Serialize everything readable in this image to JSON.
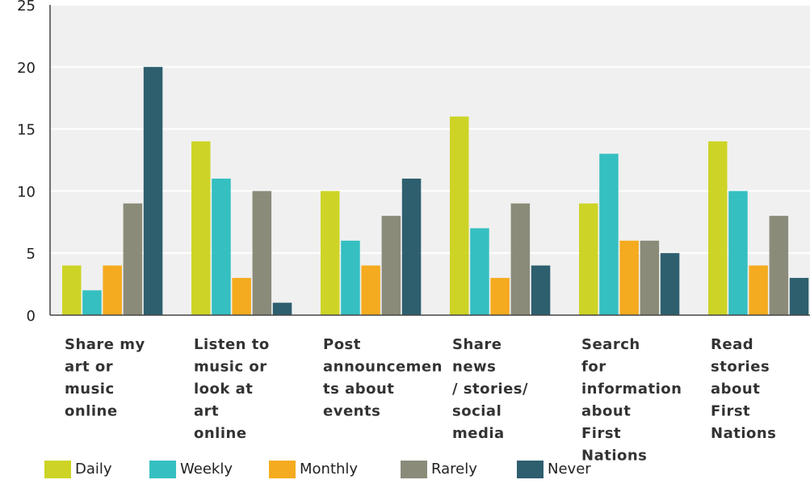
{
  "chart_data": {
    "type": "bar",
    "title": "",
    "xlabel": "",
    "ylabel": "",
    "ylim": [
      0,
      25
    ],
    "yticks": [
      0,
      5,
      10,
      15,
      20,
      25
    ],
    "grid": true,
    "legend_position": "bottom",
    "categories": [
      [
        "Share my",
        "art or",
        "music",
        "online"
      ],
      [
        "Listen to",
        "music or",
        "look at",
        "art",
        "online"
      ],
      [
        "Post",
        "announcemen",
        "ts about",
        "events"
      ],
      [
        "Share",
        "news",
        "/ stories/",
        "social",
        "media"
      ],
      [
        "Search",
        "for",
        "information",
        "about",
        "First",
        "Nations"
      ],
      [
        "Read",
        "stories",
        "about",
        "First",
        "Nations"
      ]
    ],
    "series": [
      {
        "name": "Daily",
        "color": "#cdd426",
        "values": [
          4,
          14,
          10,
          16,
          9,
          14
        ]
      },
      {
        "name": "Weekly",
        "color": "#35bfc1",
        "values": [
          2,
          11,
          6,
          7,
          13,
          10
        ]
      },
      {
        "name": "Monthly",
        "color": "#f5ab1f",
        "values": [
          4,
          3,
          4,
          3,
          6,
          4
        ]
      },
      {
        "name": "Rarely",
        "color": "#8b8b7a",
        "values": [
          9,
          10,
          8,
          9,
          6,
          8
        ]
      },
      {
        "name": "Never",
        "color": "#2e5f6f",
        "values": [
          20,
          1,
          11,
          4,
          5,
          3
        ]
      }
    ],
    "colors": {
      "plot_background": "#f0f0f0",
      "gridline": "#ffffff",
      "axis": "#444444"
    }
  }
}
